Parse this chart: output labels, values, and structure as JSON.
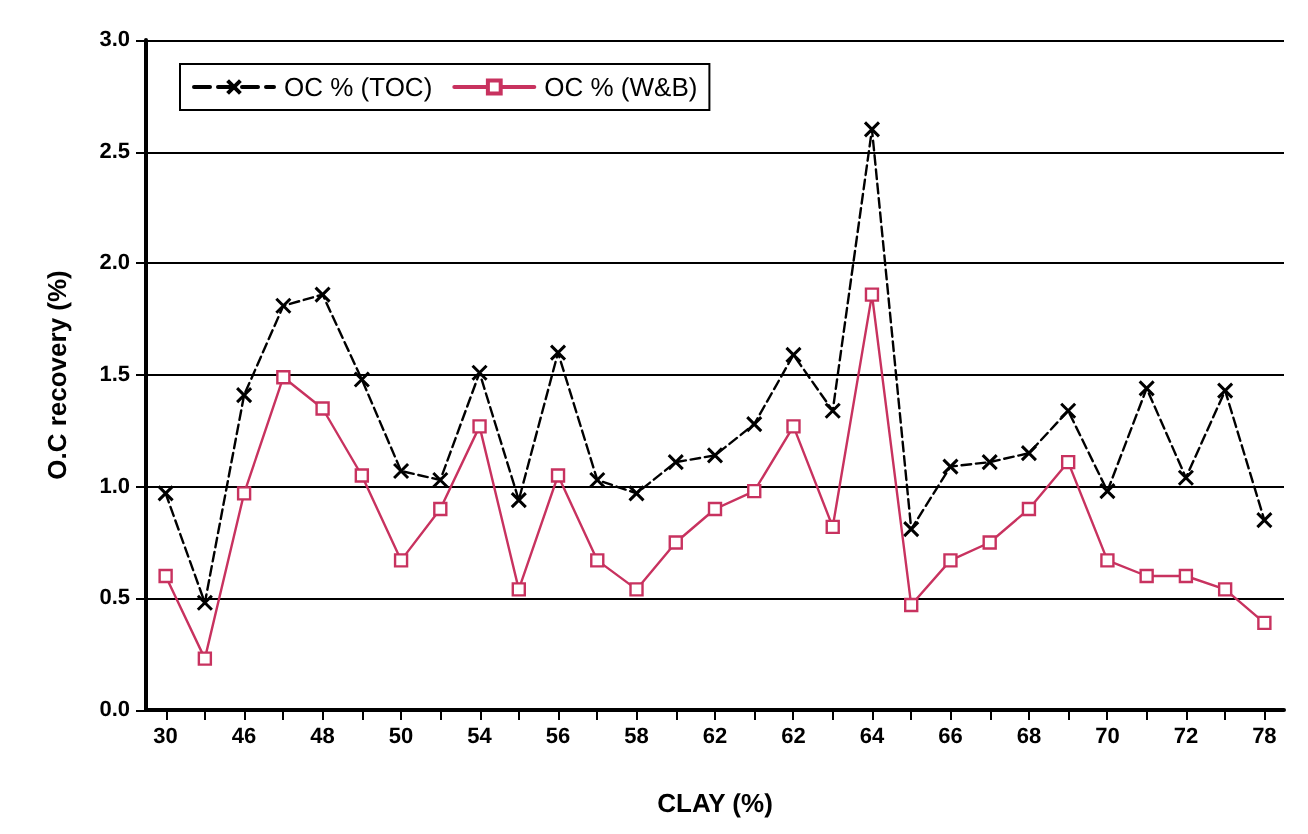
{
  "chart_data": {
    "type": "line",
    "xlabel": "CLAY (%)",
    "ylabel": "O.C recovery (%)",
    "categories": [
      "30",
      null,
      "46",
      null,
      "48",
      null,
      "50",
      null,
      "54",
      null,
      "56",
      null,
      "58",
      null,
      "62",
      null,
      "62",
      null,
      "64",
      null,
      "66",
      null,
      "68",
      null,
      "70",
      null,
      "72",
      null,
      "78"
    ],
    "series": [
      {
        "name": "OC % (TOC)",
        "color": "#000000",
        "marker": "cross",
        "line_style": "dashed",
        "values": [
          0.97,
          0.48,
          1.41,
          1.81,
          1.86,
          1.48,
          1.07,
          1.03,
          1.51,
          0.94,
          1.6,
          1.03,
          0.97,
          1.11,
          1.14,
          1.28,
          1.59,
          1.34,
          2.6,
          0.81,
          1.09,
          1.11,
          1.15,
          1.34,
          0.98,
          1.44,
          1.04,
          1.43,
          0.85
        ]
      },
      {
        "name": "OC % (W&B)",
        "color": "#c8325f",
        "marker": "square",
        "line_style": "solid",
        "values": [
          0.6,
          0.23,
          0.97,
          1.49,
          1.35,
          1.05,
          0.67,
          0.9,
          1.27,
          0.54,
          1.05,
          0.67,
          0.54,
          0.75,
          0.9,
          0.98,
          1.27,
          0.82,
          1.86,
          0.47,
          0.67,
          0.75,
          0.9,
          1.11,
          0.67,
          0.6,
          0.6,
          0.54,
          0.39
        ]
      }
    ],
    "ylim": [
      0,
      3
    ],
    "yticks": [
      {
        "value": 0,
        "label": "0.0"
      },
      {
        "value": 0.5,
        "label": "0.5"
      },
      {
        "value": 1,
        "label": "1.0"
      },
      {
        "value": 1.5,
        "label": "1.5"
      },
      {
        "value": 2,
        "label": "2.0"
      },
      {
        "value": 2.5,
        "label": "2.5"
      },
      {
        "value": 3,
        "label": "3.0"
      }
    ],
    "grid": "y",
    "legend": "top left"
  }
}
